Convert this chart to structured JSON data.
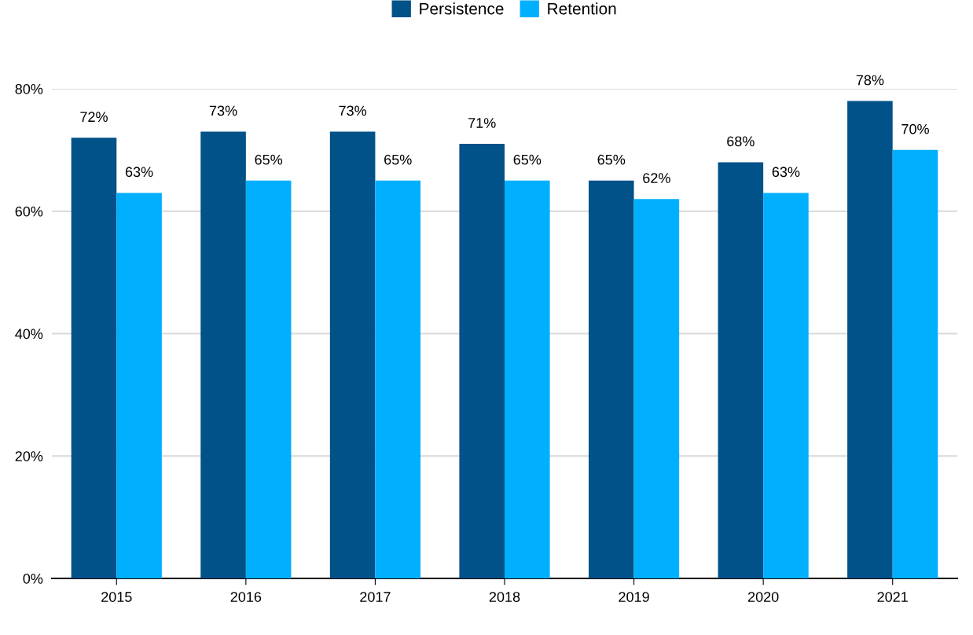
{
  "chart_data": {
    "type": "bar",
    "categories": [
      "2015",
      "2016",
      "2017",
      "2018",
      "2019",
      "2020",
      "2021"
    ],
    "series": [
      {
        "name": "Persistence",
        "color": "#005288",
        "values": [
          72,
          73,
          73,
          71,
          65,
          68,
          78
        ],
        "value_labels": [
          "72%",
          "73%",
          "73%",
          "71%",
          "65%",
          "68%",
          "78%"
        ]
      },
      {
        "name": "Retention",
        "color": "#00b0ff",
        "values": [
          63,
          65,
          65,
          65,
          62,
          63,
          70
        ],
        "value_labels": [
          "63%",
          "65%",
          "65%",
          "65%",
          "62%",
          "63%",
          "70%"
        ]
      }
    ],
    "ylim": [
      0,
      80
    ],
    "yticks": [
      {
        "value": 0,
        "label": "0%"
      },
      {
        "value": 20,
        "label": "20%"
      },
      {
        "value": 40,
        "label": "40%"
      },
      {
        "value": 60,
        "label": "60%"
      },
      {
        "value": 80,
        "label": "80%"
      }
    ],
    "grid": "y",
    "legend": "top"
  }
}
